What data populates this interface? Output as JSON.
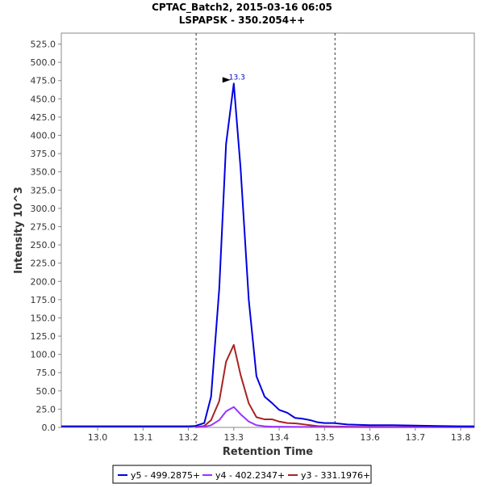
{
  "chart_data": {
    "type": "line",
    "title": "CPTAC_Batch2, 2015-03-16 06:05",
    "subtitle": "LSPAPSK - 350.2054++",
    "xlabel": "Retention Time",
    "ylabel": "Intensity 10^3",
    "xlim": [
      12.92,
      13.83
    ],
    "ylim": [
      0,
      540
    ],
    "x_ticks": [
      13.0,
      13.1,
      13.2,
      13.3,
      13.4,
      13.5,
      13.6,
      13.7,
      13.8
    ],
    "x_tick_labels": [
      "13.0",
      "13.1",
      "13.2",
      "13.3",
      "13.4",
      "13.5",
      "13.6",
      "13.7",
      "13.8"
    ],
    "y_ticks": [
      0,
      25,
      50,
      75,
      100,
      125,
      150,
      175,
      200,
      225,
      250,
      275,
      300,
      325,
      350,
      375,
      400,
      425,
      450,
      475,
      500,
      525
    ],
    "y_tick_labels": [
      "0.0",
      "25.0",
      "50.0",
      "75.0",
      "100.0",
      "125.0",
      "150.0",
      "175.0",
      "200.0",
      "225.0",
      "250.0",
      "275.0",
      "300.0",
      "325.0",
      "350.0",
      "375.0",
      "400.0",
      "425.0",
      "450.0",
      "475.0",
      "500.0",
      "525.0"
    ],
    "grid": false,
    "legend_position": "bottom",
    "boundaries": [
      13.217,
      13.523
    ],
    "peak": {
      "x": 13.3,
      "y": 471,
      "label": "13.3"
    },
    "series": [
      {
        "name": "y5 - 499.2875+",
        "color": "#0000e0",
        "x": [
          12.92,
          13.0,
          13.1,
          13.2,
          13.215,
          13.235,
          13.25,
          13.268,
          13.283,
          13.3,
          13.315,
          13.333,
          13.35,
          13.368,
          13.385,
          13.4,
          13.418,
          13.435,
          13.45,
          13.468,
          13.485,
          13.5,
          13.52,
          13.55,
          13.6,
          13.65,
          13.7,
          13.75,
          13.8,
          13.83
        ],
        "y": [
          1.5,
          1.5,
          1.5,
          1.5,
          2,
          6,
          42,
          190,
          388,
          471,
          355,
          175,
          70,
          42,
          33,
          24,
          20,
          13,
          12,
          10,
          7,
          6,
          6,
          4,
          3,
          3,
          2.5,
          2,
          1.5,
          1.5
        ]
      },
      {
        "name": "y4 - 402.2347+",
        "color": "#9933ff",
        "x": [
          13.215,
          13.235,
          13.25,
          13.268,
          13.283,
          13.3,
          13.315,
          13.333,
          13.35,
          13.368,
          13.385,
          13.4,
          13.45,
          13.5,
          13.55,
          13.6,
          13.65,
          13.7,
          13.75,
          13.8,
          13.83
        ],
        "y": [
          0.3,
          0.8,
          3,
          10,
          22,
          28,
          18,
          8,
          3,
          1.5,
          1,
          1,
          0.7,
          0.5,
          0.4,
          0.3,
          0.3,
          0.3,
          0.3,
          0.3,
          0.3
        ]
      },
      {
        "name": "y3 - 331.1976+",
        "color": "#aa2222",
        "x": [
          13.215,
          13.235,
          13.25,
          13.268,
          13.283,
          13.3,
          13.315,
          13.333,
          13.35,
          13.368,
          13.385,
          13.4,
          13.418,
          13.435,
          13.45,
          13.468,
          13.485,
          13.5,
          13.55,
          13.6,
          13.65,
          13.7,
          13.75,
          13.8,
          13.83
        ],
        "y": [
          0.5,
          2,
          10,
          36,
          90,
          113,
          72,
          33,
          14,
          11,
          11,
          8,
          6,
          5.5,
          4.5,
          3,
          1.8,
          1.5,
          1,
          0.8,
          0.6,
          0.5,
          0.5,
          0.5,
          0.5
        ]
      }
    ]
  }
}
